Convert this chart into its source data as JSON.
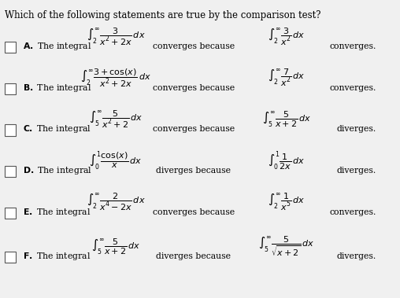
{
  "title": "Which of the following statements are true by the comparison test?",
  "background_color": "#f0f0f0",
  "text_color": "#000000",
  "figsize": [
    5.08,
    3.79
  ],
  "dpi": 100,
  "rows": [
    {
      "label": "A",
      "left_integral": "\\int_{2}^{\\infty} \\dfrac{3}{x^2+2x}\\, dx",
      "middle": "converges because",
      "right_integral": "\\int_{2}^{\\infty} \\dfrac{3}{x^2}\\, dx",
      "verdict": "converges."
    },
    {
      "label": "B",
      "left_integral": "\\int_{2}^{\\infty} \\dfrac{3+\\cos(x)}{x^2+2x}\\, dx",
      "middle": "converges because",
      "right_integral": "\\int_{2}^{\\infty} \\dfrac{7}{x^2}\\, dx",
      "verdict": "converges."
    },
    {
      "label": "C",
      "left_integral": "\\int_{5}^{\\infty} \\dfrac{5}{x^2+2}\\, dx",
      "middle": "converges because",
      "right_integral": "\\int_{5}^{\\infty} \\dfrac{5}{x+2}\\, dx",
      "verdict": "diverges."
    },
    {
      "label": "D",
      "left_integral": "\\int_{0}^{1} \\dfrac{\\cos(x)}{x}\\, dx",
      "middle": "diverges because",
      "right_integral": "\\int_{0}^{1} \\dfrac{1}{2x}\\, dx",
      "verdict": "diverges."
    },
    {
      "label": "E",
      "left_integral": "\\int_{2}^{\\infty} \\dfrac{2}{x^4-2x}\\, dx",
      "middle": "converges because",
      "right_integral": "\\int_{2}^{\\infty} \\dfrac{1}{x^5}\\, dx",
      "verdict": "converges."
    },
    {
      "label": "F",
      "left_integral": "\\int_{5}^{\\infty} \\dfrac{5}{x+2}\\, dx",
      "middle": "diverges because",
      "right_integral": "\\int_{5}^{\\infty} \\dfrac{5}{\\sqrt{x+2}}\\, dx",
      "verdict": "diverges."
    }
  ]
}
